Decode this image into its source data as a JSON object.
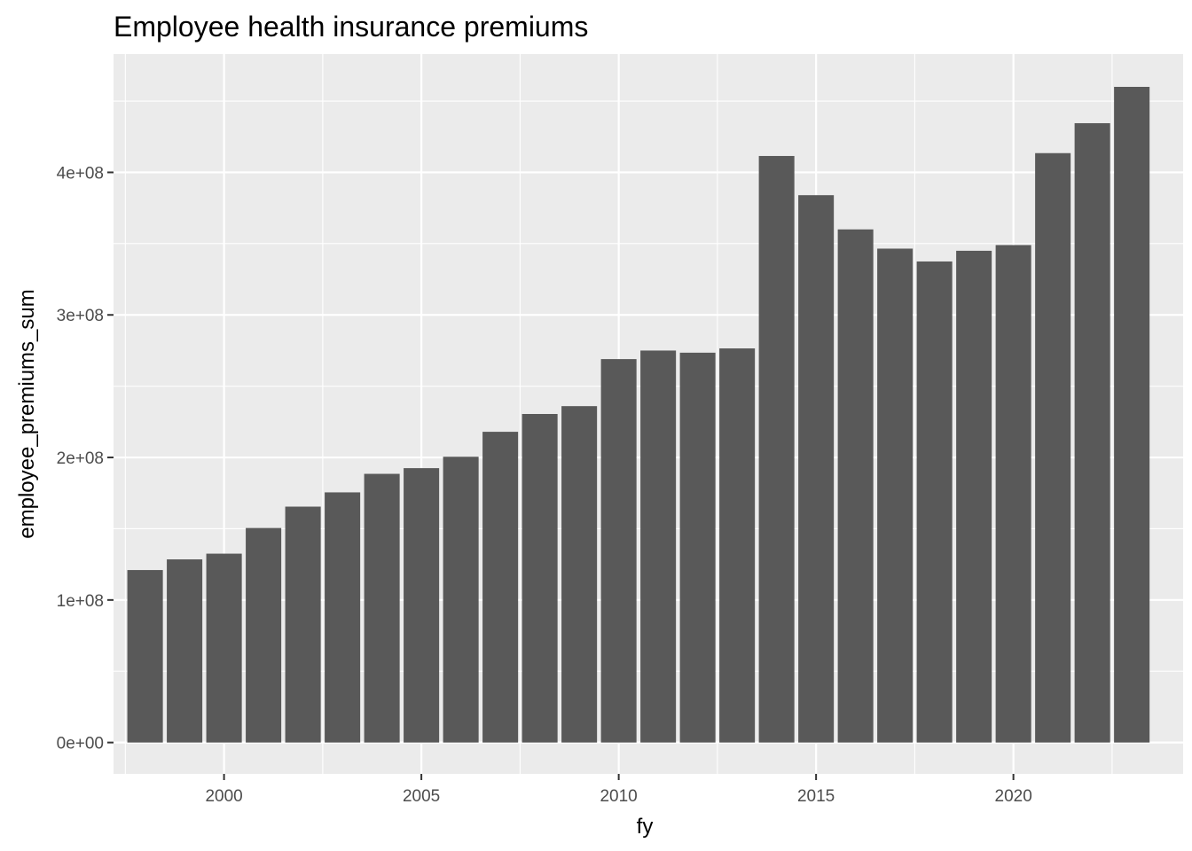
{
  "chart_data": {
    "type": "bar",
    "title": "Employee health insurance premiums",
    "xlabel": "fy",
    "ylabel": "employee_premiums_sum",
    "x": [
      1998,
      1999,
      2000,
      2001,
      2002,
      2003,
      2004,
      2005,
      2006,
      2007,
      2008,
      2009,
      2010,
      2011,
      2012,
      2013,
      2014,
      2015,
      2016,
      2017,
      2018,
      2019,
      2020,
      2021,
      2022,
      2023
    ],
    "values": [
      121000000,
      128500000,
      132500000,
      150500000,
      165500000,
      175500000,
      188500000,
      192500000,
      200500000,
      218000000,
      230500000,
      236000000,
      269000000,
      275000000,
      273500000,
      276500000,
      411500000,
      384000000,
      360000000,
      346500000,
      337500000,
      345000000,
      349000000,
      413500000,
      434500000,
      460000000
    ],
    "xlim": [
      1997.2,
      2024.3
    ],
    "ylim": [
      -22000000,
      483000000
    ],
    "x_ticks": [
      2000,
      2005,
      2010,
      2015,
      2020
    ],
    "x_tick_labels": [
      "2000",
      "2005",
      "2010",
      "2015",
      "2020"
    ],
    "y_ticks": [
      0,
      100000000,
      200000000,
      300000000,
      400000000
    ],
    "y_tick_labels": [
      "0e+00",
      "1e+08",
      "2e+08",
      "3e+08",
      "4e+08"
    ],
    "bar_color": "#595959",
    "panel_background": "#ebebeb",
    "grid": true,
    "legend": "none"
  }
}
